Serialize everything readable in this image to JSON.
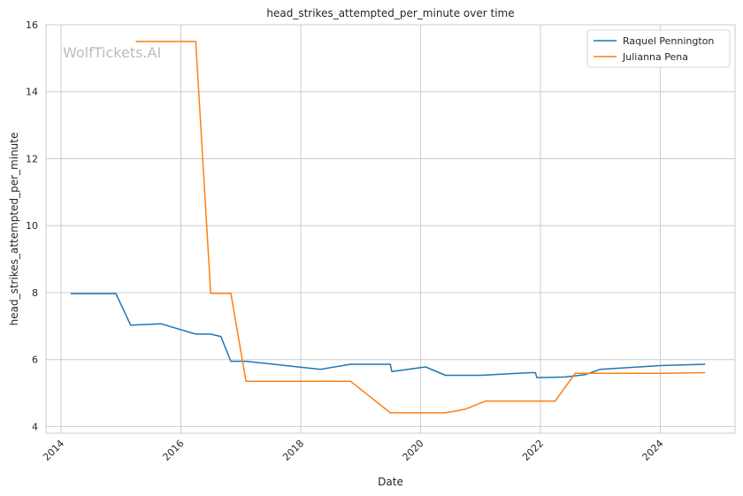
{
  "chart_data": {
    "type": "line",
    "title": "head_strikes_attempted_per_minute over time",
    "xlabel": "Date",
    "ylabel": "head_strikes_attempted_per_minute",
    "watermark": "WolfTickets.AI",
    "xlim": [
      "2013-10-01",
      "2025-04-01"
    ],
    "ylim": [
      3.8,
      16.0
    ],
    "xticks": [
      "2014",
      "2016",
      "2018",
      "2020",
      "2022",
      "2024"
    ],
    "yticks": [
      4,
      6,
      8,
      10,
      12,
      14,
      16
    ],
    "grid": true,
    "legend_position": "top-right",
    "series": [
      {
        "name": "Raquel Pennington",
        "color": "#1f77b4",
        "points": [
          [
            "2014-03-01",
            7.97
          ],
          [
            "2014-12-01",
            7.97
          ],
          [
            "2015-03-01",
            7.03
          ],
          [
            "2015-09-01",
            7.07
          ],
          [
            "2016-04-01",
            6.76
          ],
          [
            "2016-07-01",
            6.76
          ],
          [
            "2016-09-01",
            6.69
          ],
          [
            "2016-11-01",
            5.95
          ],
          [
            "2017-02-01",
            5.95
          ],
          [
            "2018-05-01",
            5.71
          ],
          [
            "2018-11-01",
            5.86
          ],
          [
            "2019-07-01",
            5.86
          ],
          [
            "2019-07-10",
            5.64
          ],
          [
            "2020-02-01",
            5.78
          ],
          [
            "2020-06-01",
            5.53
          ],
          [
            "2021-01-01",
            5.53
          ],
          [
            "2021-11-01",
            5.61
          ],
          [
            "2021-12-01",
            5.61
          ],
          [
            "2021-12-10",
            5.46
          ],
          [
            "2022-06-01",
            5.48
          ],
          [
            "2022-10-01",
            5.55
          ],
          [
            "2023-01-01",
            5.71
          ],
          [
            "2024-01-01",
            5.82
          ],
          [
            "2024-10-01",
            5.86
          ]
        ]
      },
      {
        "name": "Julianna Pena",
        "color": "#ff7f0e",
        "points": [
          [
            "2015-04-01",
            15.5
          ],
          [
            "2016-04-01",
            15.5
          ],
          [
            "2016-07-01",
            7.98
          ],
          [
            "2016-11-01",
            7.98
          ],
          [
            "2017-02-01",
            5.35
          ],
          [
            "2018-11-01",
            5.35
          ],
          [
            "2019-07-01",
            4.41
          ],
          [
            "2020-06-01",
            4.41
          ],
          [
            "2020-10-01",
            4.52
          ],
          [
            "2021-02-01",
            4.76
          ],
          [
            "2022-04-01",
            4.76
          ],
          [
            "2022-08-01",
            5.59
          ],
          [
            "2024-01-01",
            5.59
          ],
          [
            "2024-10-01",
            5.61
          ]
        ]
      }
    ]
  }
}
